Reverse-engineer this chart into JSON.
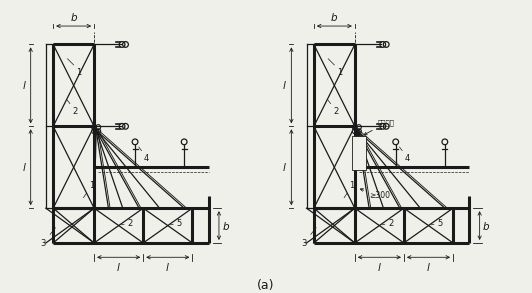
{
  "bg_color": "#f0f0eb",
  "line_color": "#1a1a1a",
  "thick_lw": 2.2,
  "thin_lw": 0.9,
  "dim_lw": 0.6,
  "caption": "(a)",
  "caption_fontsize": 9
}
